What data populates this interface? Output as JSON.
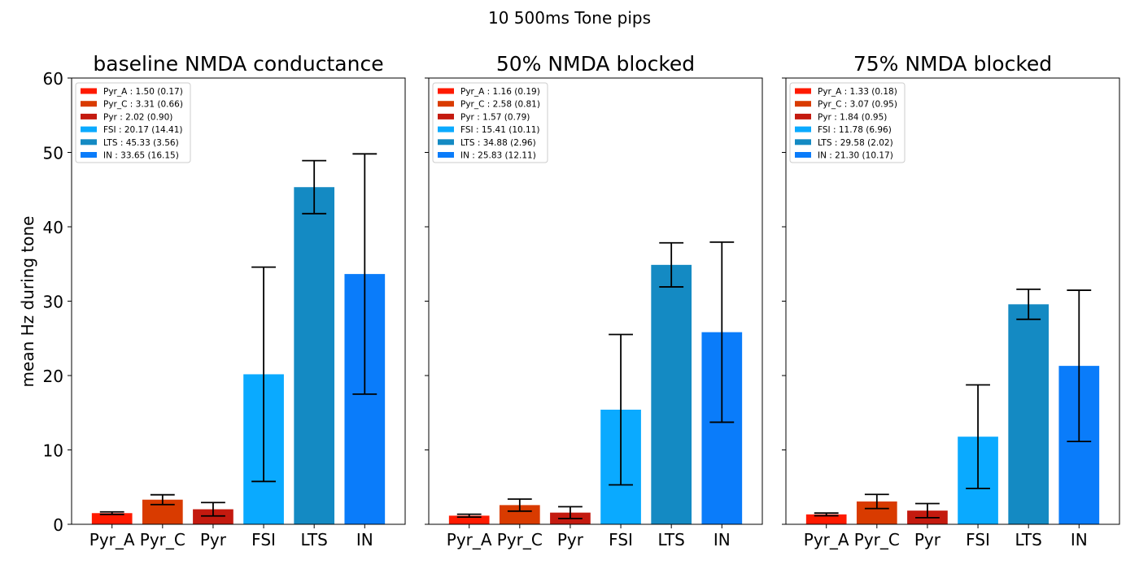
{
  "suptitle": "10 500ms Tone pips",
  "ylabel": "mean Hz during tone",
  "chart_data": [
    {
      "type": "bar",
      "title": "baseline NMDA conductance",
      "categories": [
        "Pyr_A",
        "Pyr_C",
        "Pyr",
        "FSI",
        "LTS",
        "IN"
      ],
      "values": [
        1.5,
        3.31,
        2.02,
        20.17,
        45.33,
        33.65
      ],
      "errors": [
        0.17,
        0.66,
        0.9,
        14.41,
        3.56,
        16.15
      ],
      "legend": [
        "Pyr_A : 1.50 (0.17)",
        "Pyr_C : 3.31 (0.66)",
        "Pyr : 2.02 (0.90)",
        "FSI : 20.17 (14.41)",
        "LTS : 45.33 (3.56)",
        "IN : 33.65 (16.15)"
      ],
      "ylim": [
        0,
        60
      ],
      "yticks": [
        0,
        10,
        20,
        30,
        40,
        50,
        60
      ],
      "legend_position": "upper-left"
    },
    {
      "type": "bar",
      "title": "50% NMDA blocked",
      "categories": [
        "Pyr_A",
        "Pyr_C",
        "Pyr",
        "FSI",
        "LTS",
        "IN"
      ],
      "values": [
        1.16,
        2.58,
        1.57,
        15.41,
        34.88,
        25.83
      ],
      "errors": [
        0.19,
        0.81,
        0.79,
        10.11,
        2.96,
        12.11
      ],
      "legend": [
        "Pyr_A : 1.16 (0.19)",
        "Pyr_C : 2.58 (0.81)",
        "Pyr : 1.57 (0.79)",
        "FSI : 15.41 (10.11)",
        "LTS : 34.88 (2.96)",
        "IN : 25.83 (12.11)"
      ],
      "ylim": [
        0,
        60
      ],
      "legend_position": "upper-left"
    },
    {
      "type": "bar",
      "title": "75% NMDA blocked",
      "categories": [
        "Pyr_A",
        "Pyr_C",
        "Pyr",
        "FSI",
        "LTS",
        "IN"
      ],
      "values": [
        1.33,
        3.07,
        1.84,
        11.78,
        29.58,
        21.3
      ],
      "errors": [
        0.18,
        0.95,
        0.95,
        6.96,
        2.02,
        10.17
      ],
      "legend": [
        "Pyr_A : 1.33 (0.18)",
        "Pyr_C : 3.07 (0.95)",
        "Pyr : 1.84 (0.95)",
        "FSI : 11.78 (6.96)",
        "LTS : 29.58 (2.02)",
        "IN : 21.30 (10.17)"
      ],
      "ylim": [
        0,
        60
      ],
      "legend_position": "upper-left"
    }
  ],
  "colors": [
    "#ff1a00",
    "#d93b00",
    "#c41a0f",
    "#0aaaff",
    "#148ac3",
    "#0a7cfa"
  ]
}
